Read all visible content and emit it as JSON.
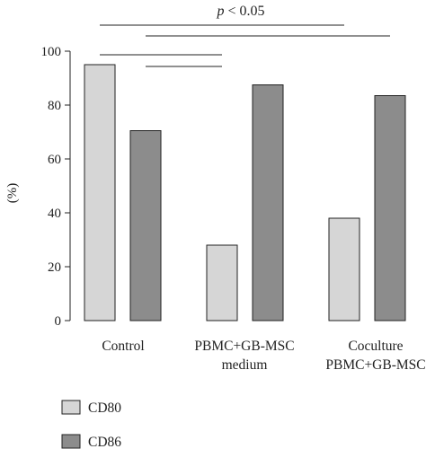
{
  "chart_data": {
    "type": "bar",
    "ylabel": "(%)",
    "ylim": [
      0,
      100
    ],
    "yticks": [
      0,
      20,
      40,
      60,
      80,
      100
    ],
    "categories": [
      [
        "Control"
      ],
      [
        "PBMC+GB-MSC",
        "medium"
      ],
      [
        "Coculture",
        "PBMC+GB-MSC"
      ]
    ],
    "series": [
      {
        "name": "CD80",
        "color": "#d6d6d6",
        "values": [
          95,
          28,
          38
        ]
      },
      {
        "name": "CD86",
        "color": "#8c8c8c",
        "values": [
          70.5,
          87.5,
          83.5
        ]
      }
    ],
    "significance": {
      "label_italic": "p",
      "label_rest": " < 0.05",
      "comparisons": [
        {
          "from_category": 0,
          "from_series": 0,
          "to_category": 2,
          "to_series": 0
        },
        {
          "from_category": 0,
          "from_series": 1,
          "to_category": 2,
          "to_series": 1
        },
        {
          "from_category": 0,
          "from_series": 0,
          "to_category": 1,
          "to_series": 0
        },
        {
          "from_category": 0,
          "from_series": 1,
          "to_category": 1,
          "to_series": 0
        }
      ]
    },
    "legend_placement": "bottom-left",
    "grid": false
  }
}
